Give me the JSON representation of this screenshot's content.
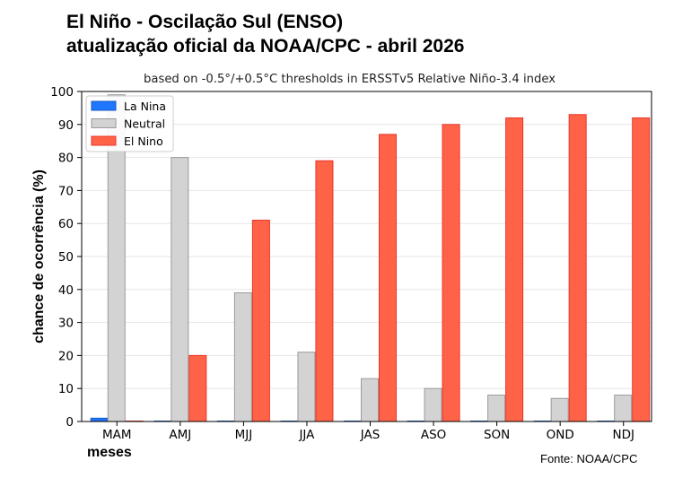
{
  "title_line1": "El Niño - Oscilação Sul (ENSO)",
  "title_line2": "atualização oficial da NOAA/CPC - abril 2026",
  "source": "Fonte: NOAA/CPC",
  "colors": {
    "la_nina": "#1f77ff",
    "neutral": "#d3d3d3",
    "el_nino": "#ff6347"
  },
  "chart_data": {
    "type": "bar",
    "subtitle": "based on -0.5°/+0.5°C thresholds in ERSSTv5 Relative Niño-3.4 index",
    "xlabel": "meses",
    "ylabel": "chance de ocorrência (%)",
    "ylim": [
      0,
      100
    ],
    "yticks": [
      0,
      10,
      20,
      30,
      40,
      50,
      60,
      70,
      80,
      90,
      100
    ],
    "grid": true,
    "legend_position": "top-left",
    "categories": [
      "MAM",
      "AMJ",
      "MJJ",
      "JJA",
      "JAS",
      "ASO",
      "SON",
      "OND",
      "NDJ"
    ],
    "series": [
      {
        "name": "La Nina",
        "color": "#1f77ff",
        "values": [
          1,
          0,
          0,
          0,
          0,
          0,
          0,
          0,
          0
        ]
      },
      {
        "name": "Neutral",
        "color": "#d3d3d3",
        "values": [
          99,
          80,
          39,
          21,
          13,
          10,
          8,
          7,
          8
        ]
      },
      {
        "name": "El Nino",
        "color": "#ff6347",
        "values": [
          0,
          20,
          61,
          79,
          87,
          90,
          92,
          93,
          92
        ]
      }
    ]
  }
}
